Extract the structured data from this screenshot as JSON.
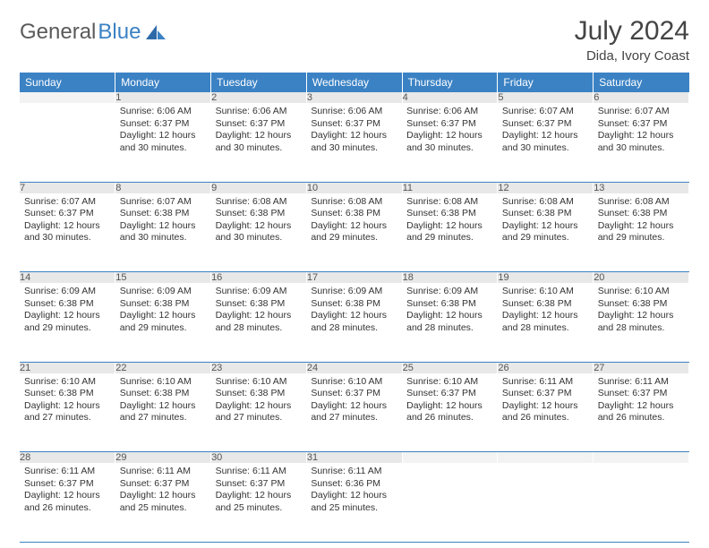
{
  "logo": {
    "word1": "General",
    "word2": "Blue"
  },
  "title": "July 2024",
  "location": "Dida, Ivory Coast",
  "colors": {
    "header_bg": "#3b82c4",
    "header_text": "#ffffff",
    "daynum_bg": "#e8e8e8",
    "border": "#3b82c4",
    "logo_gray": "#5a5a5a",
    "logo_blue": "#3b82c4"
  },
  "font": {
    "day_header_size": 12,
    "daynum_size": 11,
    "body_size": 10.5,
    "title_size": 30
  },
  "day_headers": [
    "Sunday",
    "Monday",
    "Tuesday",
    "Wednesday",
    "Thursday",
    "Friday",
    "Saturday"
  ],
  "weeks": [
    [
      null,
      {
        "n": "1",
        "sr": "Sunrise: 6:06 AM",
        "ss": "Sunset: 6:37 PM",
        "dl": "Daylight: 12 hours and 30 minutes."
      },
      {
        "n": "2",
        "sr": "Sunrise: 6:06 AM",
        "ss": "Sunset: 6:37 PM",
        "dl": "Daylight: 12 hours and 30 minutes."
      },
      {
        "n": "3",
        "sr": "Sunrise: 6:06 AM",
        "ss": "Sunset: 6:37 PM",
        "dl": "Daylight: 12 hours and 30 minutes."
      },
      {
        "n": "4",
        "sr": "Sunrise: 6:06 AM",
        "ss": "Sunset: 6:37 PM",
        "dl": "Daylight: 12 hours and 30 minutes."
      },
      {
        "n": "5",
        "sr": "Sunrise: 6:07 AM",
        "ss": "Sunset: 6:37 PM",
        "dl": "Daylight: 12 hours and 30 minutes."
      },
      {
        "n": "6",
        "sr": "Sunrise: 6:07 AM",
        "ss": "Sunset: 6:37 PM",
        "dl": "Daylight: 12 hours and 30 minutes."
      }
    ],
    [
      {
        "n": "7",
        "sr": "Sunrise: 6:07 AM",
        "ss": "Sunset: 6:37 PM",
        "dl": "Daylight: 12 hours and 30 minutes."
      },
      {
        "n": "8",
        "sr": "Sunrise: 6:07 AM",
        "ss": "Sunset: 6:38 PM",
        "dl": "Daylight: 12 hours and 30 minutes."
      },
      {
        "n": "9",
        "sr": "Sunrise: 6:08 AM",
        "ss": "Sunset: 6:38 PM",
        "dl": "Daylight: 12 hours and 30 minutes."
      },
      {
        "n": "10",
        "sr": "Sunrise: 6:08 AM",
        "ss": "Sunset: 6:38 PM",
        "dl": "Daylight: 12 hours and 29 minutes."
      },
      {
        "n": "11",
        "sr": "Sunrise: 6:08 AM",
        "ss": "Sunset: 6:38 PM",
        "dl": "Daylight: 12 hours and 29 minutes."
      },
      {
        "n": "12",
        "sr": "Sunrise: 6:08 AM",
        "ss": "Sunset: 6:38 PM",
        "dl": "Daylight: 12 hours and 29 minutes."
      },
      {
        "n": "13",
        "sr": "Sunrise: 6:08 AM",
        "ss": "Sunset: 6:38 PM",
        "dl": "Daylight: 12 hours and 29 minutes."
      }
    ],
    [
      {
        "n": "14",
        "sr": "Sunrise: 6:09 AM",
        "ss": "Sunset: 6:38 PM",
        "dl": "Daylight: 12 hours and 29 minutes."
      },
      {
        "n": "15",
        "sr": "Sunrise: 6:09 AM",
        "ss": "Sunset: 6:38 PM",
        "dl": "Daylight: 12 hours and 29 minutes."
      },
      {
        "n": "16",
        "sr": "Sunrise: 6:09 AM",
        "ss": "Sunset: 6:38 PM",
        "dl": "Daylight: 12 hours and 28 minutes."
      },
      {
        "n": "17",
        "sr": "Sunrise: 6:09 AM",
        "ss": "Sunset: 6:38 PM",
        "dl": "Daylight: 12 hours and 28 minutes."
      },
      {
        "n": "18",
        "sr": "Sunrise: 6:09 AM",
        "ss": "Sunset: 6:38 PM",
        "dl": "Daylight: 12 hours and 28 minutes."
      },
      {
        "n": "19",
        "sr": "Sunrise: 6:10 AM",
        "ss": "Sunset: 6:38 PM",
        "dl": "Daylight: 12 hours and 28 minutes."
      },
      {
        "n": "20",
        "sr": "Sunrise: 6:10 AM",
        "ss": "Sunset: 6:38 PM",
        "dl": "Daylight: 12 hours and 28 minutes."
      }
    ],
    [
      {
        "n": "21",
        "sr": "Sunrise: 6:10 AM",
        "ss": "Sunset: 6:38 PM",
        "dl": "Daylight: 12 hours and 27 minutes."
      },
      {
        "n": "22",
        "sr": "Sunrise: 6:10 AM",
        "ss": "Sunset: 6:38 PM",
        "dl": "Daylight: 12 hours and 27 minutes."
      },
      {
        "n": "23",
        "sr": "Sunrise: 6:10 AM",
        "ss": "Sunset: 6:38 PM",
        "dl": "Daylight: 12 hours and 27 minutes."
      },
      {
        "n": "24",
        "sr": "Sunrise: 6:10 AM",
        "ss": "Sunset: 6:37 PM",
        "dl": "Daylight: 12 hours and 27 minutes."
      },
      {
        "n": "25",
        "sr": "Sunrise: 6:10 AM",
        "ss": "Sunset: 6:37 PM",
        "dl": "Daylight: 12 hours and 26 minutes."
      },
      {
        "n": "26",
        "sr": "Sunrise: 6:11 AM",
        "ss": "Sunset: 6:37 PM",
        "dl": "Daylight: 12 hours and 26 minutes."
      },
      {
        "n": "27",
        "sr": "Sunrise: 6:11 AM",
        "ss": "Sunset: 6:37 PM",
        "dl": "Daylight: 12 hours and 26 minutes."
      }
    ],
    [
      {
        "n": "28",
        "sr": "Sunrise: 6:11 AM",
        "ss": "Sunset: 6:37 PM",
        "dl": "Daylight: 12 hours and 26 minutes."
      },
      {
        "n": "29",
        "sr": "Sunrise: 6:11 AM",
        "ss": "Sunset: 6:37 PM",
        "dl": "Daylight: 12 hours and 25 minutes."
      },
      {
        "n": "30",
        "sr": "Sunrise: 6:11 AM",
        "ss": "Sunset: 6:37 PM",
        "dl": "Daylight: 12 hours and 25 minutes."
      },
      {
        "n": "31",
        "sr": "Sunrise: 6:11 AM",
        "ss": "Sunset: 6:36 PM",
        "dl": "Daylight: 12 hours and 25 minutes."
      },
      null,
      null,
      null
    ]
  ]
}
